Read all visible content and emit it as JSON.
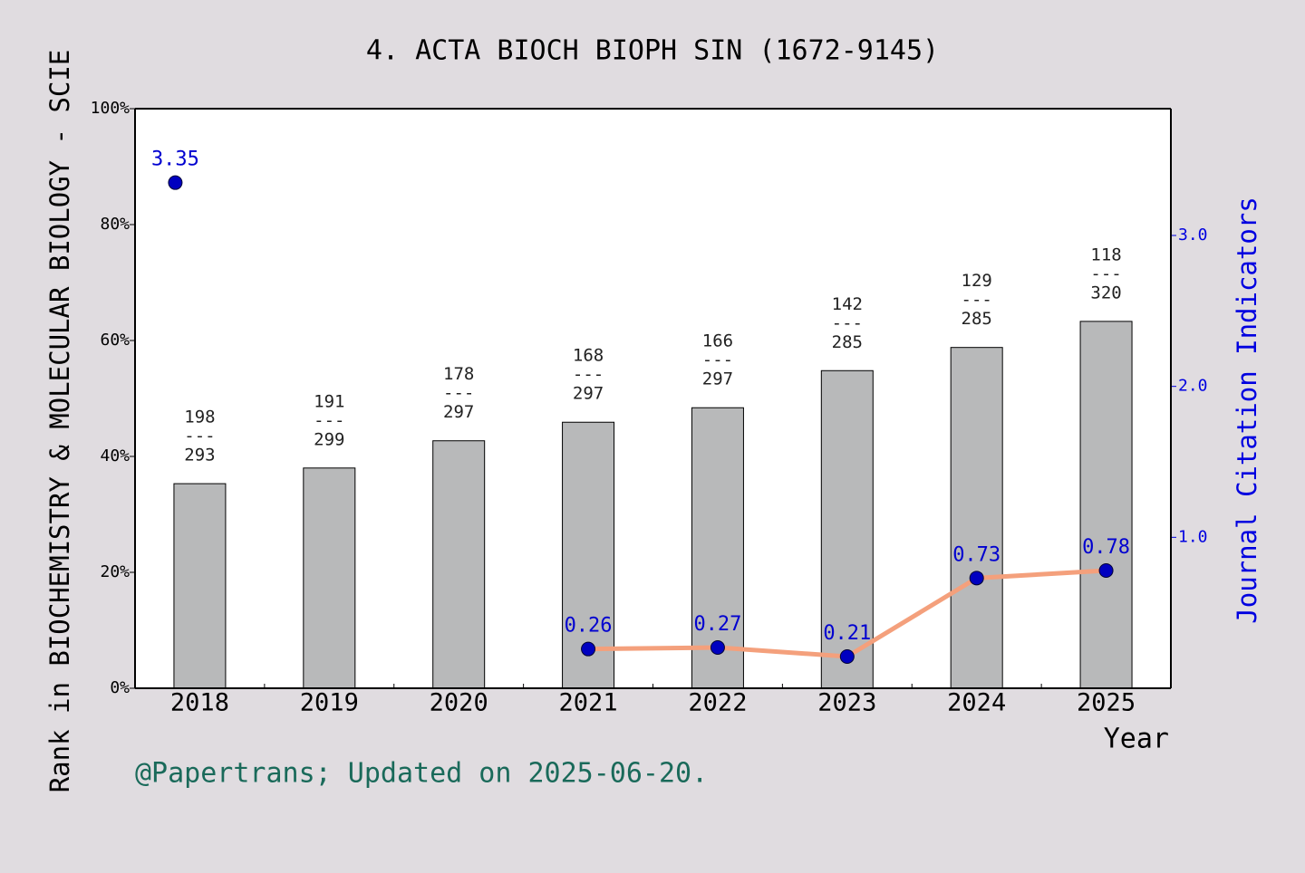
{
  "chart_data": {
    "type": "bar",
    "title": "4. ACTA BIOCH BIOPH SIN (1672-9145)",
    "y_label": "Rank in BIOCHEMISTRY & MOLECULAR BIOLOGY - SCIE",
    "y2_label": "Journal Citation Indicators",
    "x_label": "Year",
    "footer": "@Papertrans; Updated on 2025-06-20.",
    "categories": [
      "2018",
      "2019",
      "2020",
      "2021",
      "2022",
      "2023",
      "2024",
      "2025"
    ],
    "values": [
      35.3,
      38.0,
      42.7,
      45.9,
      48.4,
      54.8,
      58.8,
      63.3
    ],
    "color": "#b8b9ba",
    "ranks": [
      198,
      191,
      178,
      168,
      166,
      142,
      129,
      118
    ],
    "totals": [
      293,
      299,
      297,
      297,
      297,
      285,
      285,
      320
    ],
    "label_separator": "---",
    "ylim": [
      0,
      100
    ],
    "yticks": [
      {
        "value": 0,
        "label": "0%"
      },
      {
        "value": 20,
        "label": "20%"
      },
      {
        "value": 40,
        "label": "40%"
      },
      {
        "value": 60,
        "label": "60%"
      },
      {
        "value": 80,
        "label": "80%"
      },
      {
        "value": 100,
        "label": "100%"
      }
    ],
    "y2lim": [
      0,
      3.84
    ],
    "y2ticks": [
      {
        "value": 1,
        "label": "1.0"
      },
      {
        "value": 2,
        "label": "2.0"
      },
      {
        "value": 3,
        "label": "3.0"
      }
    ],
    "series": [
      {
        "name": "JCI",
        "axis": "y2",
        "line_color": "#f4a07c",
        "color": "#0000c0",
        "values": [
          3.35,
          null,
          null,
          0.26,
          0.27,
          0.21,
          0.73,
          0.78
        ]
      }
    ]
  }
}
